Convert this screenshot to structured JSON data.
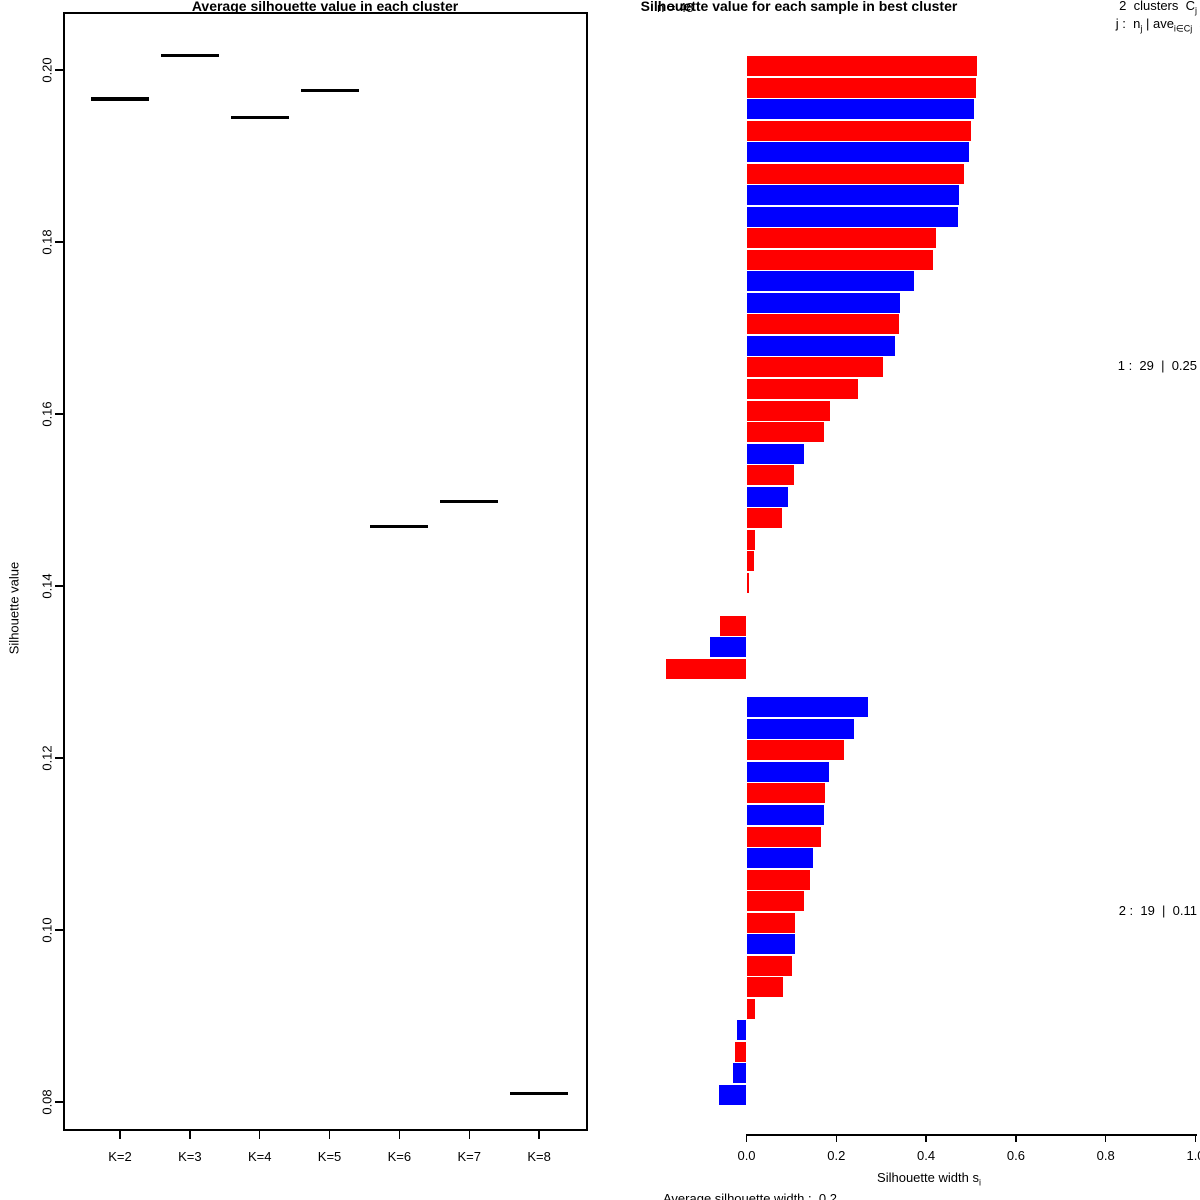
{
  "chart_data": [
    {
      "type": "scatter",
      "title": "Average silhouette value in each cluster",
      "xlabel": "",
      "ylabel": "Silhouette value",
      "categories": [
        "K=2",
        "K=3",
        "K=4",
        "K=5",
        "K=6",
        "K=7",
        "K=8"
      ],
      "values": [
        0.1966,
        0.2017,
        0.1945,
        0.1976,
        0.1469,
        0.1498,
        0.081
      ],
      "marker": "horizontal-segment",
      "ylim": [
        0.0766,
        0.2067
      ],
      "grid": false,
      "yticks": [
        {
          "v": 0.08,
          "label": "0.08"
        },
        {
          "v": 0.1,
          "label": "0.10"
        },
        {
          "v": 0.12,
          "label": "0.12"
        },
        {
          "v": 0.14,
          "label": "0.14"
        },
        {
          "v": 0.16,
          "label": "0.16"
        },
        {
          "v": 0.18,
          "label": "0.18"
        },
        {
          "v": 0.2,
          "label": "0.20"
        }
      ]
    },
    {
      "type": "bar",
      "orientation": "horizontal",
      "title": "Silhouette value for each sample in best cluster",
      "n_label": "n = 48",
      "header_line1": [
        {
          "t": "2  clusters  C"
        },
        {
          "s": "j"
        }
      ],
      "header_line2": [
        {
          "t": "j :  n"
        },
        {
          "s": "j"
        },
        {
          "t": " | ave"
        },
        {
          "s": "i∈Cj"
        },
        {
          "t": "  s"
        },
        {
          "s": "i"
        }
      ],
      "xlabel_rich": [
        {
          "t": "Silhouette width s"
        },
        {
          "s": "i"
        }
      ],
      "xlim": [
        -0.19,
        1.0
      ],
      "xticks": [
        {
          "v": 0.0,
          "label": "0.0"
        },
        {
          "v": 0.2,
          "label": "0.2"
        },
        {
          "v": 0.4,
          "label": "0.4"
        },
        {
          "v": 0.6,
          "label": "0.6"
        },
        {
          "v": 0.8,
          "label": "0.8"
        },
        {
          "v": 1.0,
          "label": "1.0"
        }
      ],
      "colors": {
        "red": "#FF0000",
        "blue": "#0000FF"
      },
      "clusters": [
        {
          "id": 1,
          "n": 29,
          "avg": 0.25,
          "label": "1 :  29  |  0.25",
          "bars": [
            {
              "value": 0.513,
              "color": "red"
            },
            {
              "value": 0.511,
              "color": "red"
            },
            {
              "value": 0.507,
              "color": "blue"
            },
            {
              "value": 0.501,
              "color": "red"
            },
            {
              "value": 0.496,
              "color": "blue"
            },
            {
              "value": 0.485,
              "color": "red"
            },
            {
              "value": 0.473,
              "color": "blue"
            },
            {
              "value": 0.47,
              "color": "blue"
            },
            {
              "value": 0.422,
              "color": "red"
            },
            {
              "value": 0.415,
              "color": "red"
            },
            {
              "value": 0.372,
              "color": "blue"
            },
            {
              "value": 0.341,
              "color": "blue"
            },
            {
              "value": 0.339,
              "color": "red"
            },
            {
              "value": 0.33,
              "color": "blue"
            },
            {
              "value": 0.304,
              "color": "red"
            },
            {
              "value": 0.248,
              "color": "red"
            },
            {
              "value": 0.186,
              "color": "red"
            },
            {
              "value": 0.173,
              "color": "red"
            },
            {
              "value": 0.127,
              "color": "blue"
            },
            {
              "value": 0.105,
              "color": "red"
            },
            {
              "value": 0.093,
              "color": "blue"
            },
            {
              "value": 0.08,
              "color": "red"
            },
            {
              "value": 0.02,
              "color": "red"
            },
            {
              "value": 0.017,
              "color": "red"
            },
            {
              "value": 0.005,
              "color": "red"
            },
            {
              "value": 0.0,
              "color": "red"
            },
            {
              "value": -0.059,
              "color": "red"
            },
            {
              "value": -0.081,
              "color": "blue"
            },
            {
              "value": -0.18,
              "color": "red"
            }
          ]
        },
        {
          "id": 2,
          "n": 19,
          "avg": 0.11,
          "label": "2 :  19  |  0.11",
          "bars": [
            {
              "value": 0.27,
              "color": "blue"
            },
            {
              "value": 0.24,
              "color": "blue"
            },
            {
              "value": 0.218,
              "color": "red"
            },
            {
              "value": 0.184,
              "color": "blue"
            },
            {
              "value": 0.174,
              "color": "red"
            },
            {
              "value": 0.173,
              "color": "blue"
            },
            {
              "value": 0.167,
              "color": "red"
            },
            {
              "value": 0.149,
              "color": "blue"
            },
            {
              "value": 0.142,
              "color": "red"
            },
            {
              "value": 0.127,
              "color": "red"
            },
            {
              "value": 0.109,
              "color": "red"
            },
            {
              "value": 0.107,
              "color": "blue"
            },
            {
              "value": 0.102,
              "color": "red"
            },
            {
              "value": 0.082,
              "color": "red"
            },
            {
              "value": 0.019,
              "color": "red"
            },
            {
              "value": -0.022,
              "color": "blue"
            },
            {
              "value": -0.025,
              "color": "red"
            },
            {
              "value": -0.031,
              "color": "blue"
            },
            {
              "value": -0.062,
              "color": "blue"
            }
          ]
        }
      ],
      "footer": "Average silhouette width :  0.2"
    }
  ]
}
